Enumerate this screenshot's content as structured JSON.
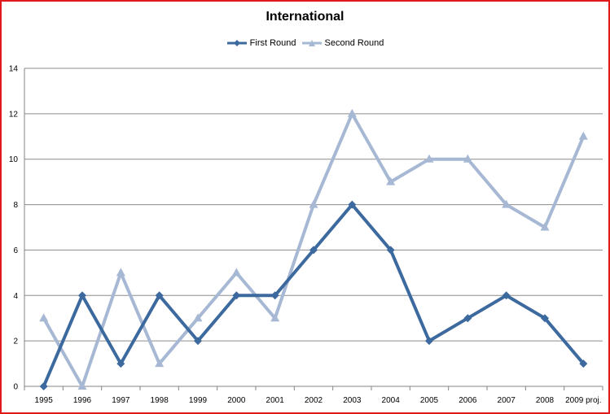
{
  "chart_data": {
    "type": "line",
    "title": "International",
    "categories": [
      "1995",
      "1996",
      "1997",
      "1998",
      "1999",
      "2000",
      "2001",
      "2002",
      "2003",
      "2004",
      "2005",
      "2006",
      "2007",
      "2008",
      "2009 proj."
    ],
    "series": [
      {
        "name": "First Round",
        "color": "#3d6a9e",
        "marker": "diamond",
        "values": [
          0,
          4,
          1,
          4,
          2,
          4,
          4,
          6,
          8,
          6,
          2,
          3,
          4,
          3,
          1
        ]
      },
      {
        "name": "Second Round",
        "color": "#a6b8d3",
        "marker": "triangle",
        "values": [
          3,
          0,
          5,
          1,
          3,
          5,
          3,
          8,
          12,
          9,
          10,
          10,
          8,
          7,
          11
        ]
      }
    ],
    "ylim": [
      0,
      14
    ],
    "yticks": [
      0,
      2,
      4,
      6,
      8,
      10,
      12,
      14
    ],
    "grid": true,
    "legend": "top"
  }
}
